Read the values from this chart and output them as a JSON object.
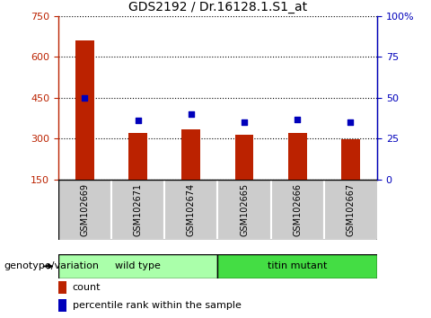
{
  "title": "GDS2192 / Dr.16128.1.S1_at",
  "samples": [
    "GSM102669",
    "GSM102671",
    "GSM102674",
    "GSM102665",
    "GSM102666",
    "GSM102667"
  ],
  "counts": [
    660,
    320,
    335,
    315,
    320,
    297
  ],
  "percentile_ranks": [
    50,
    36,
    40,
    35,
    37,
    35
  ],
  "groups": [
    {
      "label": "wild type",
      "indices": [
        0,
        1,
        2
      ],
      "color": "#AAFFAA"
    },
    {
      "label": "titin mutant",
      "indices": [
        3,
        4,
        5
      ],
      "color": "#44DD44"
    }
  ],
  "ylim_left": [
    150,
    750
  ],
  "ylim_right": [
    0,
    100
  ],
  "yticks_left": [
    150,
    300,
    450,
    600,
    750
  ],
  "yticks_right": [
    0,
    25,
    50,
    75,
    100
  ],
  "bar_color": "#BB2200",
  "dot_color": "#0000BB",
  "sample_bg_color": "#CCCCCC",
  "plot_bg_color": "#FFFFFF",
  "legend_count_label": "count",
  "legend_pct_label": "percentile rank within the sample",
  "group_label": "genotype/variation",
  "bar_width": 0.35,
  "title_fontsize": 10,
  "tick_fontsize": 8,
  "sample_label_fontsize": 7,
  "group_label_fontsize": 8,
  "legend_fontsize": 8
}
